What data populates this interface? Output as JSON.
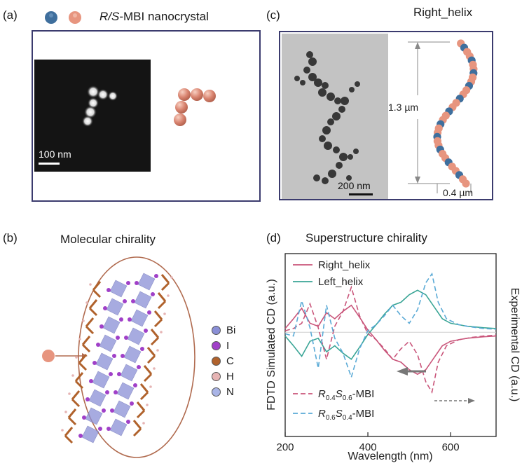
{
  "panel_a": {
    "label": "(a)",
    "legend_prefix": "R/S",
    "legend_suffix": "-MBI nanocrystal",
    "scalebar": "100 nm",
    "colors": {
      "blue": "#3f6f9d",
      "salmon": "#e7957f",
      "frame": "#3b3b6e"
    }
  },
  "panel_b": {
    "label": "(b)",
    "title": "Molecular chirality",
    "elements": [
      {
        "name": "Bi",
        "color": "#8a8fd6"
      },
      {
        "name": "I",
        "color": "#a040c8"
      },
      {
        "name": "C",
        "color": "#b0622c"
      },
      {
        "name": "H",
        "color": "#e6b4b4"
      },
      {
        "name": "N",
        "color": "#a9b4e6"
      }
    ]
  },
  "panel_c": {
    "label": "(c)",
    "title": "Right_helix",
    "height_label": "1.3 µm",
    "width_label": "0.4 µm",
    "scalebar": "200 nm"
  },
  "panel_d": {
    "label": "(d)",
    "title": "Superstructure chirality"
  },
  "chart_data": {
    "type": "line",
    "title": "Superstructure chirality",
    "xlabel": "Wavelength (nm)",
    "ylabel_left": "FDTD Simulated CD (a.u.)",
    "ylabel_right": "Experimental CD (a.u.)",
    "xlim": [
      200,
      710
    ],
    "ylim": [
      -1,
      1
    ],
    "xticks": [
      200,
      400,
      600
    ],
    "series": [
      {
        "name": "Right_helix",
        "color": "#c9557a",
        "style": "solid",
        "x": [
          200,
          220,
          240,
          260,
          280,
          300,
          320,
          340,
          360,
          380,
          400,
          420,
          440,
          460,
          480,
          500,
          520,
          540,
          560,
          580,
          600,
          620,
          640,
          660,
          680,
          710
        ],
        "y": [
          0.05,
          0.18,
          0.32,
          0.12,
          0.08,
          0.26,
          0.18,
          0.28,
          0.36,
          0.2,
          0.03,
          -0.1,
          -0.24,
          -0.36,
          -0.4,
          -0.5,
          -0.56,
          -0.5,
          -0.34,
          -0.18,
          -0.12,
          -0.1,
          -0.08,
          -0.07,
          -0.06,
          -0.05
        ]
      },
      {
        "name": "Left_helix",
        "color": "#3aa596",
        "style": "solid",
        "x": [
          200,
          220,
          240,
          260,
          280,
          300,
          320,
          340,
          360,
          380,
          400,
          420,
          440,
          460,
          480,
          500,
          520,
          540,
          560,
          580,
          600,
          620,
          640,
          660,
          680,
          710
        ],
        "y": [
          -0.05,
          -0.18,
          -0.32,
          -0.12,
          -0.08,
          -0.26,
          -0.18,
          -0.28,
          -0.36,
          -0.2,
          -0.03,
          0.1,
          0.24,
          0.36,
          0.4,
          0.5,
          0.56,
          0.5,
          0.34,
          0.18,
          0.12,
          0.1,
          0.08,
          0.07,
          0.06,
          0.05
        ]
      },
      {
        "name": "R0.4S0.6-MBI",
        "color": "#c9557a",
        "style": "dashed",
        "x": [
          200,
          220,
          240,
          260,
          280,
          300,
          320,
          340,
          360,
          380,
          400,
          420,
          440,
          460,
          480,
          500,
          520,
          540,
          555,
          570,
          590,
          620,
          650,
          680,
          710
        ],
        "y": [
          0.02,
          0.05,
          0.12,
          0.38,
          0.06,
          -0.36,
          0.08,
          0.28,
          0.6,
          0.22,
          -0.02,
          -0.1,
          -0.22,
          -0.36,
          -0.22,
          -0.12,
          -0.3,
          -0.66,
          -0.8,
          -0.4,
          -0.18,
          -0.1,
          -0.07,
          -0.05,
          -0.04
        ]
      },
      {
        "name": "R0.6S0.4-MBI",
        "color": "#5aaad6",
        "style": "dashed",
        "x": [
          200,
          220,
          240,
          260,
          280,
          300,
          320,
          340,
          360,
          380,
          400,
          420,
          440,
          460,
          480,
          500,
          520,
          540,
          555,
          570,
          590,
          620,
          650,
          680,
          710
        ],
        "y": [
          -0.02,
          -0.05,
          0.42,
          0.06,
          -0.48,
          0.36,
          -0.08,
          -0.28,
          -0.6,
          -0.22,
          0.02,
          0.1,
          0.22,
          0.36,
          0.22,
          0.12,
          0.3,
          0.66,
          0.78,
          0.4,
          0.18,
          0.1,
          0.07,
          0.05,
          0.04
        ]
      }
    ],
    "legend": [
      {
        "label": "Right_helix"
      },
      {
        "label": "Left_helix"
      },
      {
        "label_main": "R",
        "sub1": "0.4",
        "mid": "S",
        "sub2": "0.6",
        "suffix": "-MBI"
      },
      {
        "label_main": "R",
        "sub1": "0.6",
        "mid": "S",
        "sub2": "0.4",
        "suffix": "-MBI"
      }
    ]
  }
}
